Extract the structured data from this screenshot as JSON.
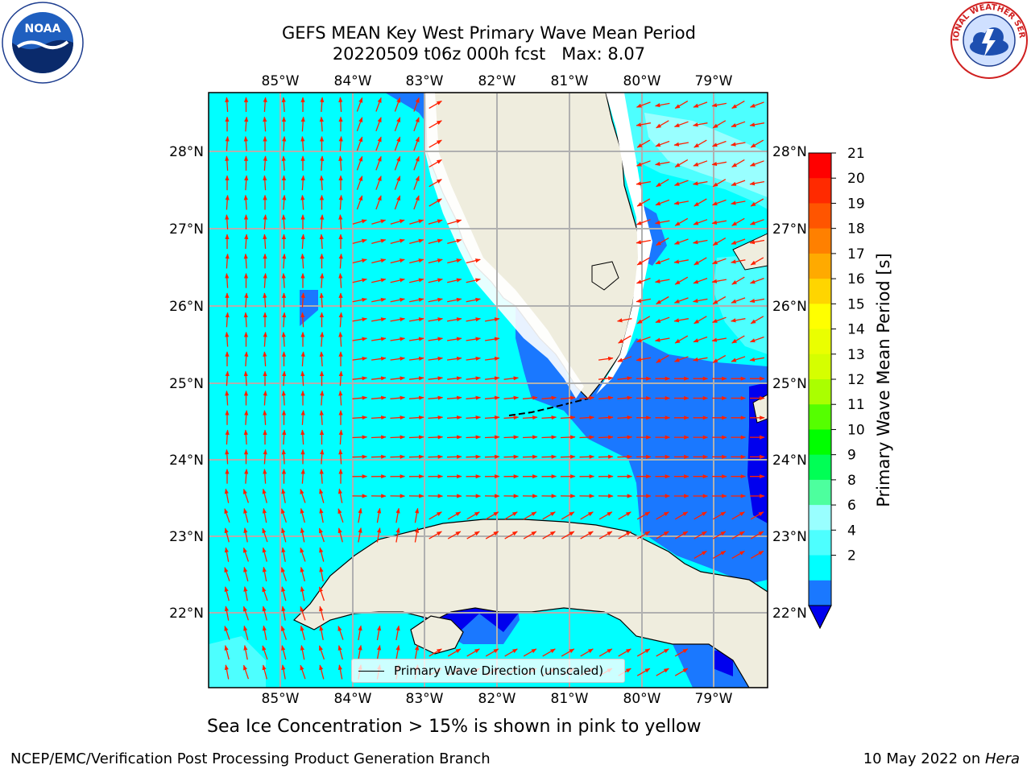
{
  "title": {
    "line1": "GEFS MEAN Key West Primary Wave Mean Period",
    "line2": "20220509 t06z 000h fcst   Max: 8.07"
  },
  "map": {
    "lon_ticks": [
      "85°W",
      "84°W",
      "83°W",
      "82°W",
      "81°W",
      "80°W",
      "79°W"
    ],
    "lat_ticks": [
      "28°N",
      "27°N",
      "26°N",
      "25°N",
      "24°N",
      "23°N",
      "22°N"
    ],
    "legend": "Primary Wave Direction (unscaled)",
    "colors": {
      "ocean_4_6": "#00ffff",
      "ocean_6_8": "#4dffff",
      "ocean_8_9": "#99ffff",
      "ocean_2_4": "#1a78ff",
      "ocean_lt2": "#0000ee",
      "land": "#efedde",
      "arrow": "#ff2000",
      "grid": "#b0b0b0"
    }
  },
  "colorbar": {
    "label": "Primary Wave Mean Period [s]",
    "ticks": [
      "21",
      "20",
      "19",
      "18",
      "17",
      "16",
      "15",
      "14",
      "13",
      "12",
      "11",
      "10",
      "9",
      "8",
      "6",
      "4",
      "2"
    ],
    "colors": [
      "#ff0000",
      "#ff2a00",
      "#ff5500",
      "#ff8000",
      "#ffaa00",
      "#ffd500",
      "#ffff00",
      "#eaff00",
      "#d5ff00",
      "#aaff00",
      "#55ff00",
      "#00ff00",
      "#00ff55",
      "#4dff9e",
      "#99ffff",
      "#4dffff",
      "#00ffff",
      "#1a78ff"
    ],
    "extend_color": "#0000ee"
  },
  "note": "Sea Ice Concentration > 15% is shown in pink to yellow",
  "footer": {
    "left": "NCEP/EMC/Verification Post Processing Product Generation Branch",
    "right_prefix": "10 May 2022 on ",
    "right_host": "Hera"
  },
  "logos": {
    "noaa_text": "NOAA",
    "nws_text": "NATIONAL WEATHER SERVICE"
  }
}
